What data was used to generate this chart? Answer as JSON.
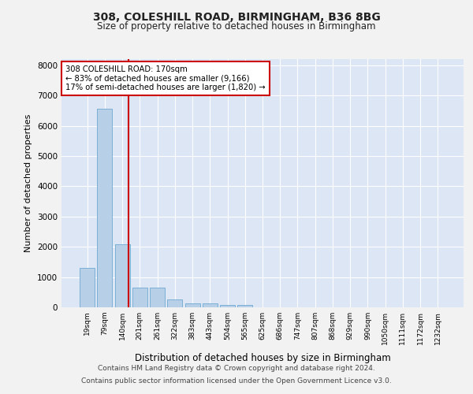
{
  "title": "308, COLESHILL ROAD, BIRMINGHAM, B36 8BG",
  "subtitle": "Size of property relative to detached houses in Birmingham",
  "xlabel": "Distribution of detached houses by size in Birmingham",
  "ylabel": "Number of detached properties",
  "bar_labels": [
    "19sqm",
    "79sqm",
    "140sqm",
    "201sqm",
    "261sqm",
    "322sqm",
    "383sqm",
    "443sqm",
    "504sqm",
    "565sqm",
    "625sqm",
    "686sqm",
    "747sqm",
    "807sqm",
    "868sqm",
    "929sqm",
    "990sqm",
    "1050sqm",
    "1111sqm",
    "1172sqm",
    "1232sqm"
  ],
  "bar_values": [
    1300,
    6550,
    2080,
    650,
    640,
    250,
    130,
    130,
    80,
    75,
    0,
    0,
    0,
    0,
    0,
    0,
    0,
    0,
    0,
    0,
    0
  ],
  "bar_color": "#b8cfe8",
  "bar_edge_color": "#7aafd4",
  "ylim": [
    0,
    8200
  ],
  "yticks": [
    0,
    1000,
    2000,
    3000,
    4000,
    5000,
    6000,
    7000,
    8000
  ],
  "vline_x_index": 2.35,
  "vline_color": "#cc0000",
  "annotation_line1": "308 COLESHILL ROAD: 170sqm",
  "annotation_line2": "← 83% of detached houses are smaller (9,166)",
  "annotation_line3": "17% of semi-detached houses are larger (1,820) →",
  "annotation_box_color": "#cc0000",
  "plot_bg_color": "#dce6f5",
  "fig_bg_color": "#f2f2f2",
  "grid_color": "#ffffff",
  "footer_line1": "Contains HM Land Registry data © Crown copyright and database right 2024.",
  "footer_line2": "Contains public sector information licensed under the Open Government Licence v3.0."
}
